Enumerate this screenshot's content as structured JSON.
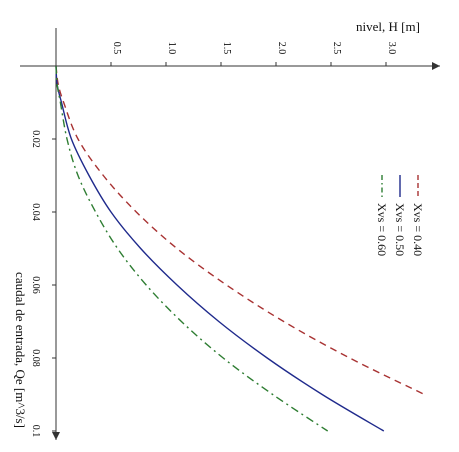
{
  "chart_data": {
    "type": "line",
    "title": "",
    "xlabel": "nivel, H [m]",
    "ylabel": "caudal de entrada, Qe [m^3/s]",
    "xlim": [
      0,
      3.4
    ],
    "ylim": [
      0,
      0.1
    ],
    "xticks": [
      "0.5",
      "1.0",
      "1.5",
      "2.0",
      "2.5",
      "3.0"
    ],
    "xtick_values": [
      0.5,
      1.0,
      1.5,
      2.0,
      2.5,
      3.0
    ],
    "yticks": [
      "0.02",
      "0.04",
      "0.06",
      "0.08",
      "0.1"
    ],
    "ytick_values": [
      0.02,
      0.04,
      0.06,
      0.08,
      0.1
    ],
    "grid": false,
    "legend_position": "top-right",
    "series": [
      {
        "name": "Xvs = 0.40",
        "color": "#a83232",
        "dash": "dashed",
        "points": [
          [
            0,
            0
          ],
          [
            0.02,
            0.005
          ],
          [
            0.07,
            0.01
          ],
          [
            0.2,
            0.02
          ],
          [
            0.43,
            0.03
          ],
          [
            0.73,
            0.04
          ],
          [
            1.1,
            0.05
          ],
          [
            1.55,
            0.06
          ],
          [
            2.07,
            0.07
          ],
          [
            2.67,
            0.08
          ],
          [
            3.35,
            0.09
          ]
        ]
      },
      {
        "name": "Xvs = 0.50",
        "color": "#1f2a8c",
        "dash": "solid",
        "points": [
          [
            0,
            0
          ],
          [
            0.01,
            0.005
          ],
          [
            0.05,
            0.01
          ],
          [
            0.14,
            0.02
          ],
          [
            0.3,
            0.03
          ],
          [
            0.5,
            0.04
          ],
          [
            0.77,
            0.05
          ],
          [
            1.1,
            0.06
          ],
          [
            1.48,
            0.07
          ],
          [
            1.92,
            0.08
          ],
          [
            2.42,
            0.09
          ],
          [
            2.98,
            0.1
          ]
        ]
      },
      {
        "name": "Xvs = 0.60",
        "color": "#2e7d32",
        "dash": "dashdot",
        "points": [
          [
            0,
            0
          ],
          [
            0.01,
            0.005
          ],
          [
            0.04,
            0.01
          ],
          [
            0.1,
            0.02
          ],
          [
            0.2,
            0.03
          ],
          [
            0.36,
            0.04
          ],
          [
            0.56,
            0.05
          ],
          [
            0.82,
            0.06
          ],
          [
            1.14,
            0.07
          ],
          [
            1.52,
            0.08
          ],
          [
            1.97,
            0.09
          ],
          [
            2.47,
            0.1
          ]
        ]
      }
    ]
  }
}
